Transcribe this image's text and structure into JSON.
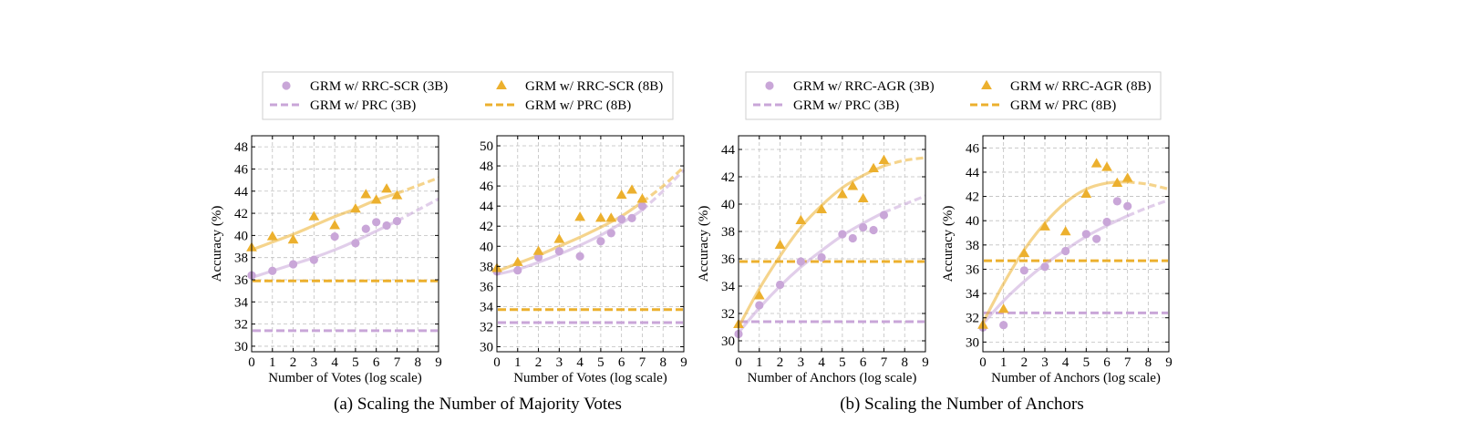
{
  "colors": {
    "small": "#c9a6d8",
    "large": "#ecb02e",
    "grid": "#bfbfbf",
    "frame": "#000000"
  },
  "captions": [
    {
      "text": "(a) Scaling the Number of Majority Votes"
    },
    {
      "text": "(b) Scaling the Number of Anchors"
    }
  ],
  "legends": [
    {
      "items": [
        {
          "label": "GRM w/ RRC-SCR (3B)",
          "kind": "circle",
          "color": "#c9a6d8"
        },
        {
          "label": "GRM w/ RRC-SCR (8B)",
          "kind": "triangle",
          "color": "#ecb02e"
        },
        {
          "label": "GRM w/ PRC (3B)",
          "kind": "dash",
          "color": "#c9a6d8"
        },
        {
          "label": "GRM w/ PRC (8B)",
          "kind": "dash",
          "color": "#ecb02e"
        }
      ]
    },
    {
      "items": [
        {
          "label": "GRM w/ RRC-AGR (3B)",
          "kind": "circle",
          "color": "#c9a6d8"
        },
        {
          "label": "GRM w/ RRC-AGR (8B)",
          "kind": "triangle",
          "color": "#ecb02e"
        },
        {
          "label": "GRM w/ PRC (3B)",
          "kind": "dash",
          "color": "#c9a6d8"
        },
        {
          "label": "GRM w/ PRC (8B)",
          "kind": "dash",
          "color": "#ecb02e"
        }
      ]
    }
  ],
  "chart_data": [
    {
      "type": "scatter",
      "xlabel": "Number of Votes (log scale)",
      "ylabel": "Accuracy (%)",
      "xlim": [
        0,
        9
      ],
      "ylim": [
        29.5,
        49
      ],
      "yticks": [
        30,
        32,
        34,
        36,
        38,
        40,
        42,
        44,
        46,
        48
      ],
      "grid": true,
      "series": [
        {
          "name": "GRM w/ RRC-SCR (3B)",
          "marker": "circle",
          "color": "#c9a6d8",
          "x": [
            0,
            1,
            2,
            3,
            4,
            5,
            5.5,
            6,
            6.5,
            7
          ],
          "y": [
            36.4,
            36.8,
            37.4,
            37.8,
            39.9,
            39.3,
            40.6,
            41.2,
            40.9,
            41.3
          ]
        },
        {
          "name": "GRM w/ RRC-SCR (8B)",
          "marker": "triangle",
          "color": "#ecb02e",
          "x": [
            0,
            1,
            2,
            3,
            4,
            5,
            5.5,
            6,
            6.5,
            7
          ],
          "y": [
            38.9,
            39.9,
            39.6,
            41.7,
            40.9,
            42.4,
            43.7,
            43.2,
            44.2,
            43.6
          ]
        }
      ],
      "fits": [
        {
          "color": "#c9a6d8",
          "x": [
            0,
            1,
            2,
            3,
            4,
            5,
            6,
            7
          ],
          "y": [
            36.2,
            36.8,
            37.4,
            38.0,
            38.7,
            39.5,
            40.4,
            41.3
          ],
          "extend_x": [
            7,
            8,
            9
          ],
          "extend_y": [
            41.3,
            42.3,
            43.3
          ]
        },
        {
          "color": "#ecb02e",
          "x": [
            0,
            1,
            2,
            3,
            4,
            5,
            6,
            7
          ],
          "y": [
            38.7,
            39.4,
            40.1,
            40.9,
            41.7,
            42.4,
            43.2,
            43.8
          ],
          "extend_x": [
            7,
            8,
            9
          ],
          "extend_y": [
            43.8,
            44.5,
            45.2
          ]
        }
      ],
      "baselines": [
        {
          "name": "GRM w/ PRC (3B)",
          "value": 31.4,
          "color": "#c9a6d8"
        },
        {
          "name": "GRM w/ PRC (8B)",
          "value": 35.9,
          "color": "#ecb02e"
        }
      ]
    },
    {
      "type": "scatter",
      "xlabel": "Number of Votes (log scale)",
      "ylabel": "",
      "xlim": [
        0,
        9
      ],
      "ylim": [
        29.5,
        51
      ],
      "yticks": [
        30,
        32,
        34,
        36,
        38,
        40,
        42,
        44,
        46,
        48,
        50
      ],
      "grid": true,
      "series": [
        {
          "name": "GRM w/ RRC-SCR (3B)",
          "marker": "circle",
          "color": "#c9a6d8",
          "x": [
            0,
            1,
            2,
            3,
            4,
            5,
            5.5,
            6,
            6.5,
            7
          ],
          "y": [
            37.5,
            37.6,
            38.9,
            39.5,
            39.0,
            40.5,
            41.3,
            42.7,
            42.8,
            44.0
          ]
        },
        {
          "name": "GRM w/ RRC-SCR (8B)",
          "marker": "triangle",
          "color": "#ecb02e",
          "x": [
            0,
            1,
            2,
            3,
            4,
            5,
            5.5,
            6,
            6.5,
            7
          ],
          "y": [
            37.8,
            38.4,
            39.5,
            40.7,
            42.9,
            42.8,
            42.8,
            45.1,
            45.6,
            44.7
          ]
        }
      ],
      "fits": [
        {
          "color": "#c9a6d8",
          "x": [
            0,
            1,
            2,
            3,
            4,
            5,
            6,
            7
          ],
          "y": [
            37.2,
            37.7,
            38.4,
            39.2,
            40.1,
            41.1,
            42.3,
            43.6
          ],
          "extend_x": [
            7,
            8,
            9
          ],
          "extend_y": [
            43.6,
            45.5,
            47.6
          ]
        },
        {
          "color": "#ecb02e",
          "x": [
            0,
            1,
            2,
            3,
            4,
            5,
            6,
            7
          ],
          "y": [
            37.5,
            38.3,
            39.1,
            40.0,
            40.9,
            41.9,
            43.0,
            44.4
          ],
          "extend_x": [
            7,
            8,
            9
          ],
          "extend_y": [
            44.4,
            46.0,
            47.9
          ]
        }
      ],
      "baselines": [
        {
          "name": "GRM w/ PRC (3B)",
          "value": 32.4,
          "color": "#c9a6d8"
        },
        {
          "name": "GRM w/ PRC (8B)",
          "value": 33.7,
          "color": "#ecb02e"
        }
      ]
    },
    {
      "type": "scatter",
      "xlabel": "Number of Anchors (log scale)",
      "ylabel": "Accuracy (%)",
      "xlim": [
        0,
        9
      ],
      "ylim": [
        29.2,
        45
      ],
      "yticks": [
        30,
        32,
        34,
        36,
        38,
        40,
        42,
        44
      ],
      "grid": true,
      "series": [
        {
          "name": "GRM w/ RRC-AGR (3B)",
          "marker": "circle",
          "color": "#c9a6d8",
          "x": [
            0,
            1,
            2,
            3,
            4,
            5,
            5.5,
            6,
            6.5,
            7
          ],
          "y": [
            30.5,
            32.6,
            34.1,
            35.8,
            36.1,
            37.8,
            37.5,
            38.3,
            38.1,
            39.2
          ]
        },
        {
          "name": "GRM w/ RRC-AGR (8B)",
          "marker": "triangle",
          "color": "#ecb02e",
          "x": [
            0,
            1,
            2,
            3,
            4,
            5,
            5.5,
            6,
            6.5,
            7
          ],
          "y": [
            31.2,
            33.3,
            37.0,
            38.8,
            39.6,
            40.7,
            41.3,
            40.4,
            42.6,
            43.2
          ]
        }
      ],
      "fits": [
        {
          "color": "#c9a6d8",
          "x": [
            0,
            1,
            2,
            3,
            4,
            5,
            6,
            7
          ],
          "y": [
            30.6,
            32.4,
            34.0,
            35.4,
            36.6,
            37.7,
            38.6,
            39.4
          ],
          "extend_x": [
            7,
            8,
            9
          ],
          "extend_y": [
            39.4,
            40.0,
            40.6
          ]
        },
        {
          "color": "#ecb02e",
          "x": [
            0,
            1,
            2,
            3,
            4,
            5,
            6,
            7
          ],
          "y": [
            31.0,
            33.8,
            36.2,
            38.3,
            39.9,
            41.2,
            42.1,
            42.8
          ],
          "extend_x": [
            7,
            8,
            9
          ],
          "extend_y": [
            42.8,
            43.2,
            43.4
          ]
        }
      ],
      "baselines": [
        {
          "name": "GRM w/ PRC (3B)",
          "value": 31.4,
          "color": "#c9a6d8"
        },
        {
          "name": "GRM w/ PRC (8B)",
          "value": 35.8,
          "color": "#ecb02e"
        }
      ]
    },
    {
      "type": "scatter",
      "xlabel": "Number of Anchors (log scale)",
      "ylabel": "Accuracy (%)",
      "xlim": [
        0,
        9
      ],
      "ylim": [
        29.2,
        47
      ],
      "yticks": [
        30,
        32,
        34,
        36,
        38,
        40,
        42,
        44,
        46
      ],
      "grid": true,
      "series": [
        {
          "name": "GRM w/ RRC-AGR (3B)",
          "marker": "circle",
          "color": "#c9a6d8",
          "x": [
            0,
            1,
            2,
            3,
            4,
            5,
            5.5,
            6,
            6.5,
            7
          ],
          "y": [
            31.2,
            31.4,
            35.9,
            36.2,
            37.5,
            38.9,
            38.5,
            39.9,
            41.6,
            41.2
          ]
        },
        {
          "name": "GRM w/ RRC-AGR (8B)",
          "marker": "triangle",
          "color": "#ecb02e",
          "x": [
            0,
            1,
            2,
            3,
            4,
            5,
            5.5,
            6,
            6.5,
            7
          ],
          "y": [
            31.4,
            32.7,
            37.3,
            39.5,
            39.1,
            42.2,
            44.7,
            44.4,
            43.1,
            43.5
          ]
        }
      ],
      "fits": [
        {
          "color": "#c9a6d8",
          "x": [
            0,
            1,
            2,
            3,
            4,
            5,
            6,
            7
          ],
          "y": [
            31.5,
            33.4,
            35.0,
            36.4,
            37.6,
            38.7,
            39.6,
            40.4
          ],
          "extend_x": [
            7,
            8,
            9
          ],
          "extend_y": [
            40.4,
            41.1,
            41.7
          ]
        },
        {
          "color": "#ecb02e",
          "x": [
            0,
            1,
            2,
            3,
            4,
            5,
            6,
            7
          ],
          "y": [
            31.6,
            34.8,
            37.6,
            39.8,
            41.5,
            42.6,
            43.1,
            43.2
          ],
          "extend_x": [
            7,
            8,
            9
          ],
          "extend_y": [
            43.2,
            43.0,
            42.6
          ]
        }
      ],
      "baselines": [
        {
          "name": "GRM w/ PRC (3B)",
          "value": 32.4,
          "color": "#c9a6d8"
        },
        {
          "name": "GRM w/ PRC (8B)",
          "value": 36.7,
          "color": "#ecb02e"
        }
      ]
    }
  ]
}
